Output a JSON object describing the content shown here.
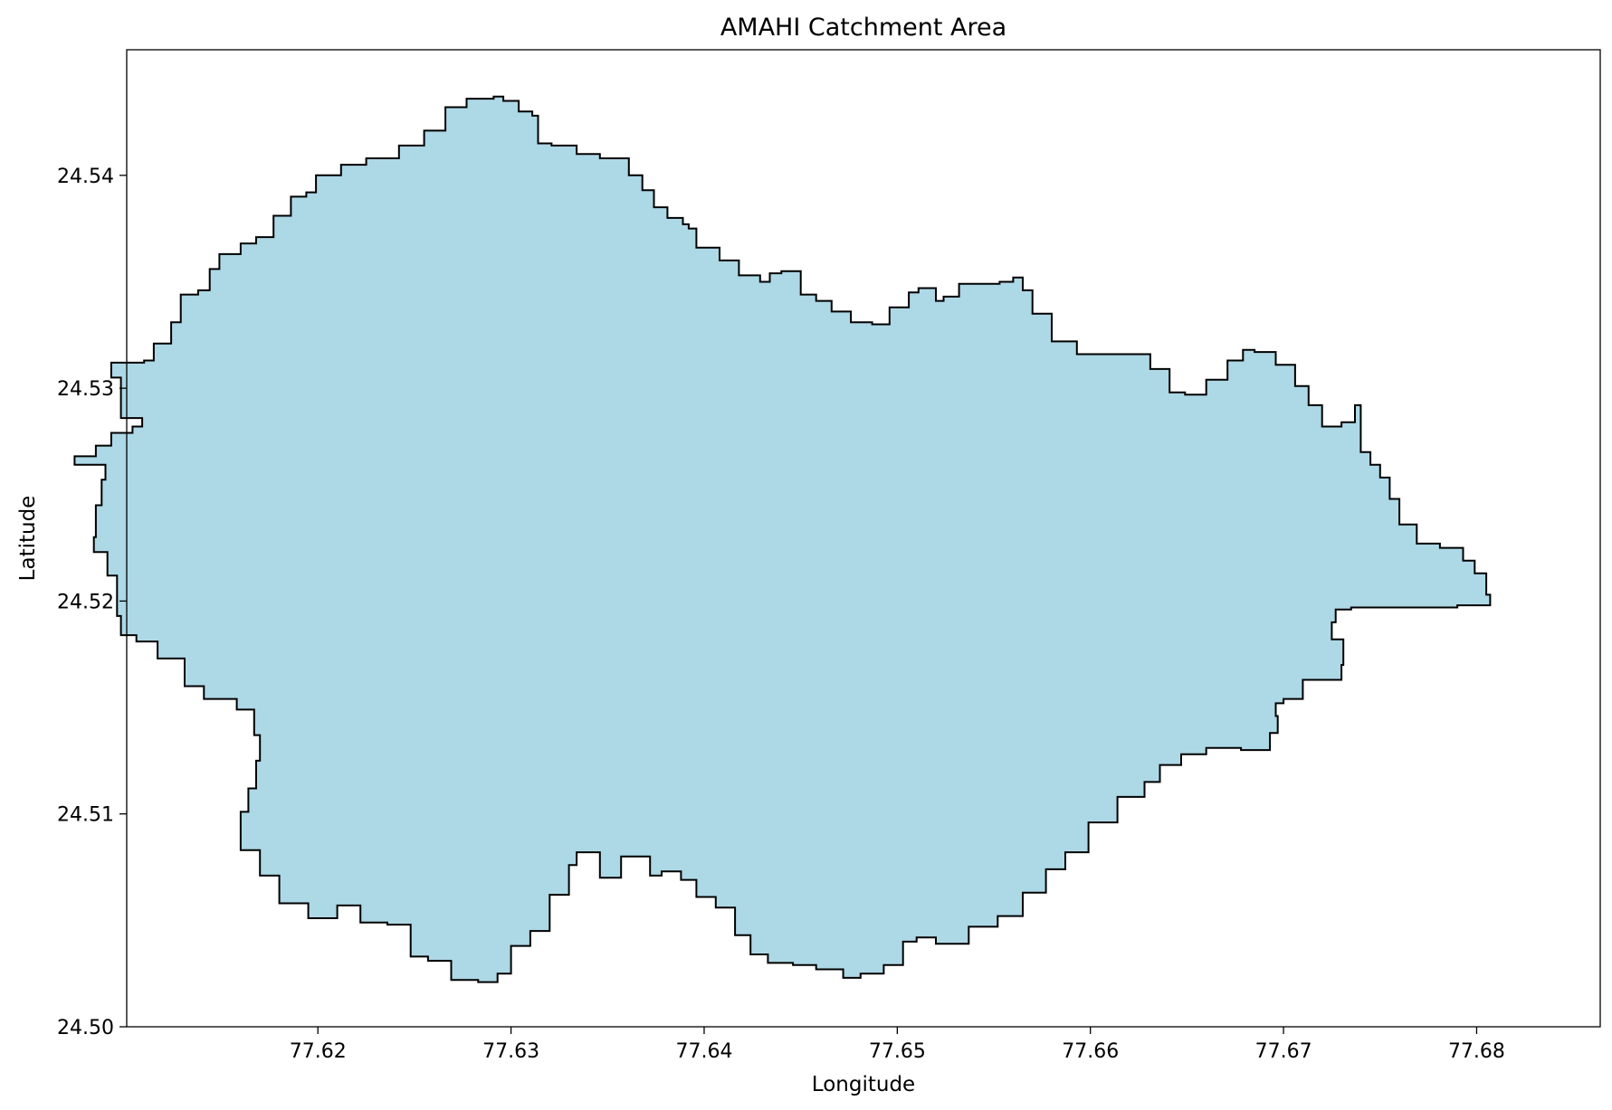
{
  "chart_data": {
    "type": "map",
    "title": "AMAHI Catchment Area",
    "xlabel": "Longitude",
    "ylabel": "Latitude",
    "xlim": [
      77.6101,
      77.6864
    ],
    "ylim": [
      24.5,
      24.5459
    ],
    "xticks": [
      77.62,
      77.63,
      77.64,
      77.65,
      77.66,
      77.67,
      77.68
    ],
    "xtick_labels": [
      "77.62",
      "77.63",
      "77.64",
      "77.65",
      "77.66",
      "77.67",
      "77.68"
    ],
    "yticks": [
      24.5,
      24.51,
      24.52,
      24.53,
      24.54
    ],
    "ytick_labels": [
      "24.50",
      "24.51",
      "24.52",
      "24.53",
      "24.54"
    ],
    "grid": false,
    "fill_color": "#add8e6",
    "edge_color": "#000000",
    "boundary": [
      [
        77.6291,
        24.5437
      ],
      [
        77.6296,
        24.5435
      ],
      [
        77.6304,
        24.543
      ],
      [
        77.6311,
        24.5428
      ],
      [
        77.6314,
        24.5415
      ],
      [
        77.6321,
        24.5414
      ],
      [
        77.6334,
        24.541
      ],
      [
        77.6346,
        24.5408
      ],
      [
        77.6361,
        24.54
      ],
      [
        77.6368,
        24.5393
      ],
      [
        77.6374,
        24.5385
      ],
      [
        77.6381,
        24.538
      ],
      [
        77.6389,
        24.5377
      ],
      [
        77.6392,
        24.5375
      ],
      [
        77.6396,
        24.5366
      ],
      [
        77.6408,
        24.536
      ],
      [
        77.6418,
        24.5353
      ],
      [
        77.6429,
        24.535
      ],
      [
        77.6434,
        24.5354
      ],
      [
        77.644,
        24.5355
      ],
      [
        77.645,
        24.5344
      ],
      [
        77.6458,
        24.5341
      ],
      [
        77.6466,
        24.5336
      ],
      [
        77.6476,
        24.5331
      ],
      [
        77.6487,
        24.533
      ],
      [
        77.6496,
        24.5338
      ],
      [
        77.6506,
        24.5345
      ],
      [
        77.6511,
        24.5347
      ],
      [
        77.652,
        24.5341
      ],
      [
        77.6524,
        24.5343
      ],
      [
        77.6532,
        24.5349
      ],
      [
        77.6553,
        24.535
      ],
      [
        77.656,
        24.5352
      ],
      [
        77.6565,
        24.5346
      ],
      [
        77.657,
        24.5335
      ],
      [
        77.658,
        24.5322
      ],
      [
        77.6593,
        24.5316
      ],
      [
        77.6612,
        24.5316
      ],
      [
        77.6624,
        24.5316
      ],
      [
        77.6631,
        24.5309
      ],
      [
        77.6641,
        24.5298
      ],
      [
        77.6649,
        24.5297
      ],
      [
        77.666,
        24.5304
      ],
      [
        77.6671,
        24.5313
      ],
      [
        77.6679,
        24.5318
      ],
      [
        77.6685,
        24.5317
      ],
      [
        77.6696,
        24.5311
      ],
      [
        77.6706,
        24.5301
      ],
      [
        77.6713,
        24.5292
      ],
      [
        77.672,
        24.5282
      ],
      [
        77.673,
        24.5284
      ],
      [
        77.6737,
        24.5292
      ],
      [
        77.674,
        24.527
      ],
      [
        77.6745,
        24.5264
      ],
      [
        77.675,
        24.5258
      ],
      [
        77.6755,
        24.5248
      ],
      [
        77.676,
        24.5236
      ],
      [
        77.6769,
        24.5227
      ],
      [
        77.6781,
        24.5225
      ],
      [
        77.6793,
        24.5219
      ],
      [
        77.6799,
        24.5213
      ],
      [
        77.6805,
        24.5203
      ],
      [
        77.6807,
        24.5198
      ],
      [
        77.679,
        24.5197
      ],
      [
        77.6765,
        24.5197
      ],
      [
        77.6735,
        24.5196
      ],
      [
        77.6727,
        24.519
      ],
      [
        77.6725,
        24.5182
      ],
      [
        77.6731,
        24.517
      ],
      [
        77.673,
        24.5163
      ],
      [
        77.671,
        24.5154
      ],
      [
        77.67,
        24.5152
      ],
      [
        77.6696,
        24.5146
      ],
      [
        77.6697,
        24.5138
      ],
      [
        77.6693,
        24.513
      ],
      [
        77.6678,
        24.5131
      ],
      [
        77.666,
        24.5128
      ],
      [
        77.6647,
        24.5123
      ],
      [
        77.6636,
        24.5115
      ],
      [
        77.6628,
        24.5108
      ],
      [
        77.6614,
        24.5096
      ],
      [
        77.6599,
        24.5082
      ],
      [
        77.6587,
        24.5074
      ],
      [
        77.6577,
        24.5063
      ],
      [
        77.6565,
        24.5052
      ],
      [
        77.6552,
        24.5047
      ],
      [
        77.6537,
        24.5039
      ],
      [
        77.652,
        24.5042
      ],
      [
        77.651,
        24.504
      ],
      [
        77.6503,
        24.5029
      ],
      [
        77.6493,
        24.5025
      ],
      [
        77.6481,
        24.5023
      ],
      [
        77.6472,
        24.5027
      ],
      [
        77.6458,
        24.5029
      ],
      [
        77.6446,
        24.503
      ],
      [
        77.6433,
        24.5034
      ],
      [
        77.6424,
        24.5043
      ],
      [
        77.6416,
        24.5056
      ],
      [
        77.6406,
        24.5061
      ],
      [
        77.6396,
        24.5069
      ],
      [
        77.6388,
        24.5073
      ],
      [
        77.6378,
        24.5071
      ],
      [
        77.6372,
        24.508
      ],
      [
        77.6357,
        24.507
      ],
      [
        77.6346,
        24.5082
      ],
      [
        77.6334,
        24.5076
      ],
      [
        77.633,
        24.5062
      ],
      [
        77.632,
        24.5045
      ],
      [
        77.631,
        24.5038
      ],
      [
        77.63,
        24.5025
      ],
      [
        77.6293,
        24.5021
      ],
      [
        77.6283,
        24.5022
      ],
      [
        77.6269,
        24.5031
      ],
      [
        77.6257,
        24.5033
      ],
      [
        77.6248,
        24.5048
      ],
      [
        77.6236,
        24.5049
      ],
      [
        77.6222,
        24.5057
      ],
      [
        77.621,
        24.5051
      ],
      [
        77.6195,
        24.5058
      ],
      [
        77.618,
        24.5071
      ],
      [
        77.617,
        24.5083
      ],
      [
        77.616,
        24.5087
      ],
      [
        77.616,
        24.5101
      ],
      [
        77.6164,
        24.5112
      ],
      [
        77.6168,
        24.5125
      ],
      [
        77.617,
        24.5137
      ],
      [
        77.6167,
        24.5149
      ],
      [
        77.6158,
        24.5154
      ],
      [
        77.6141,
        24.516
      ],
      [
        77.6131,
        24.5173
      ],
      [
        77.6117,
        24.5181
      ],
      [
        77.6106,
        24.5184
      ],
      [
        77.6098,
        24.5193
      ],
      [
        77.6096,
        24.5212
      ],
      [
        77.6091,
        24.5223
      ],
      [
        77.6084,
        24.523
      ],
      [
        77.6085,
        24.5245
      ],
      [
        77.6088,
        24.5257
      ],
      [
        77.609,
        24.5264
      ],
      [
        77.6074,
        24.5268
      ],
      [
        77.6085,
        24.5273
      ],
      [
        77.6093,
        24.5279
      ],
      [
        77.6104,
        24.5282
      ],
      [
        77.6109,
        24.5286
      ],
      [
        77.6098,
        24.5305
      ],
      [
        77.6093,
        24.5312
      ],
      [
        77.611,
        24.5313
      ],
      [
        77.6115,
        24.5321
      ],
      [
        77.6124,
        24.5331
      ],
      [
        77.6129,
        24.5344
      ],
      [
        77.6138,
        24.5346
      ],
      [
        77.6144,
        24.5356
      ],
      [
        77.6149,
        24.5363
      ],
      [
        77.616,
        24.5368
      ],
      [
        77.6168,
        24.5371
      ],
      [
        77.6177,
        24.5381
      ],
      [
        77.6186,
        24.539
      ],
      [
        77.6194,
        24.5392
      ],
      [
        77.6199,
        24.54
      ],
      [
        77.6212,
        24.5405
      ],
      [
        77.6225,
        24.5408
      ],
      [
        77.6242,
        24.5414
      ],
      [
        77.6255,
        24.5421
      ],
      [
        77.6266,
        24.5432
      ],
      [
        77.6277,
        24.5436
      ]
    ]
  }
}
